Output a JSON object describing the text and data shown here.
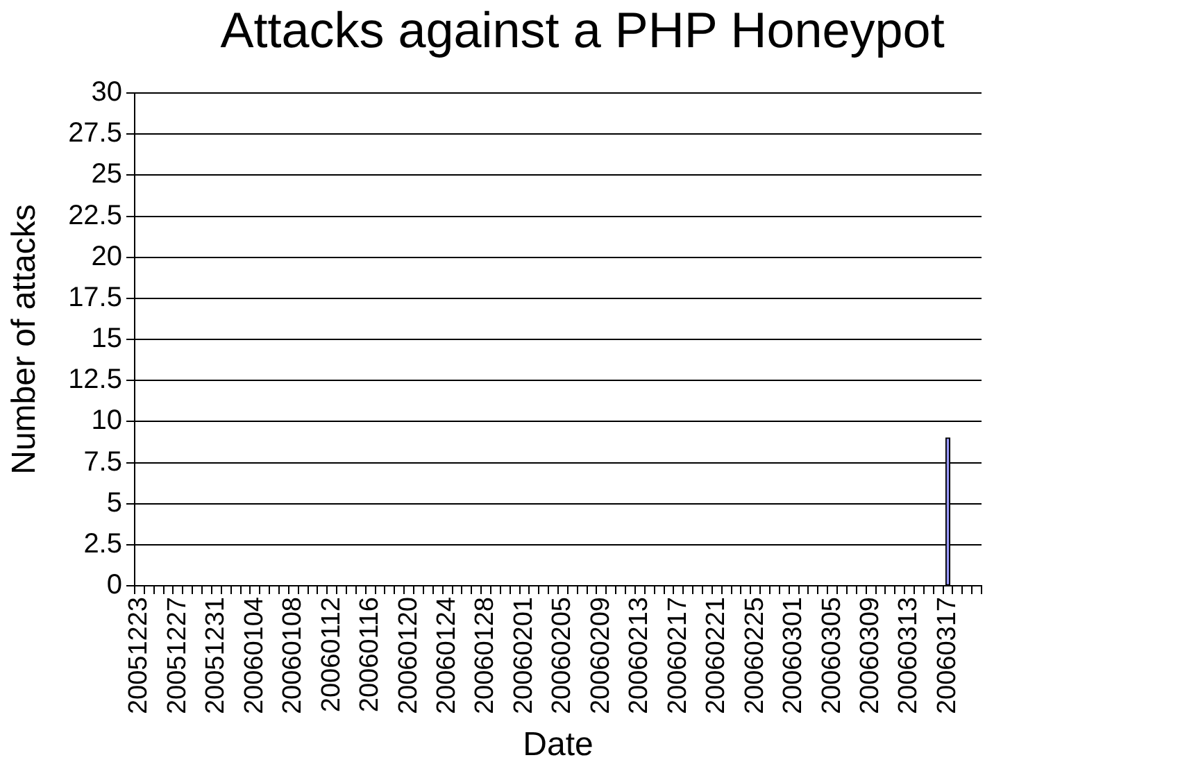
{
  "chart_data": {
    "type": "bar",
    "title": "Attacks against a PHP Honeypot",
    "xlabel": "Date",
    "ylabel": "Number of attacks",
    "categories": [
      "20051223",
      null,
      null,
      null,
      "20051227",
      null,
      null,
      null,
      "20051231",
      null,
      null,
      null,
      "20060104",
      null,
      null,
      null,
      "20060108",
      null,
      null,
      null,
      "20060112",
      null,
      null,
      null,
      "20060116",
      null,
      null,
      null,
      "20060120",
      null,
      null,
      null,
      "20060124",
      null,
      null,
      null,
      "20060128",
      null,
      null,
      null,
      "20060201",
      null,
      null,
      null,
      "20060205",
      null,
      null,
      null,
      "20060209",
      null,
      null,
      null,
      "20060213",
      null,
      null,
      null,
      "20060217",
      null,
      null,
      null,
      "20060221",
      null,
      null,
      null,
      "20060225",
      null,
      null,
      null,
      "20060301",
      null,
      null,
      null,
      "20060305",
      null,
      null,
      null,
      "20060309",
      null,
      null,
      null,
      "20060313",
      null,
      null,
      null,
      "20060317",
      null,
      null,
      null
    ],
    "series": [
      {
        "color": "#9999ff",
        "values": [
          0,
          0,
          0,
          0,
          0,
          0,
          0,
          0,
          0,
          0,
          0,
          0,
          0,
          0,
          0,
          0,
          0,
          0,
          0,
          0,
          0,
          0,
          0,
          0,
          0,
          0,
          0,
          0,
          0,
          0,
          0,
          0,
          0,
          0,
          0,
          0,
          0,
          0,
          0,
          0,
          0,
          0,
          0,
          0,
          0,
          0,
          0,
          0,
          0,
          0,
          0,
          0,
          0,
          0,
          0,
          0,
          0,
          0,
          0,
          0,
          0,
          0,
          0,
          0,
          0,
          0,
          0,
          0,
          0,
          0,
          0,
          0,
          0,
          0,
          0,
          0,
          0,
          0,
          0,
          0,
          0,
          0,
          0,
          0,
          9,
          0,
          0,
          0
        ]
      }
    ],
    "ylim": [
      0,
      30
    ],
    "yticks": [
      0,
      2.5,
      5,
      7.5,
      10,
      12.5,
      15,
      17.5,
      20,
      22.5,
      25,
      27.5,
      30
    ],
    "grid": "y",
    "legend": false
  }
}
